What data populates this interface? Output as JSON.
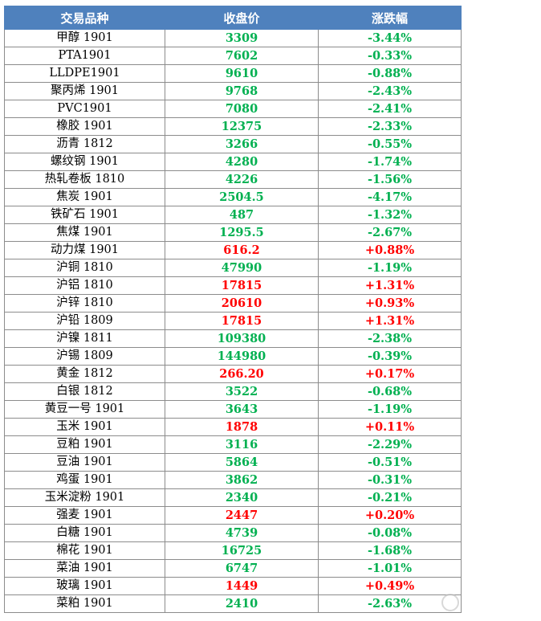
{
  "table": {
    "headers": [
      "交易品种",
      "收盘价",
      "涨跌幅"
    ],
    "colors": {
      "up": "#ff0000",
      "down": "#00b050",
      "header_bg": "#4f81bd"
    },
    "rows": [
      {
        "name": "甲醇 1901",
        "close": "3309",
        "change": "-3.44%",
        "dir": "down"
      },
      {
        "name": "PTA1901",
        "close": "7602",
        "change": "-0.33%",
        "dir": "down"
      },
      {
        "name": "LLDPE1901",
        "close": "9610",
        "change": "-0.88%",
        "dir": "down"
      },
      {
        "name": "聚丙烯 1901",
        "close": "9768",
        "change": "-2.43%",
        "dir": "down"
      },
      {
        "name": "PVC1901",
        "close": "7080",
        "change": "-2.41%",
        "dir": "down"
      },
      {
        "name": "橡胶 1901",
        "close": "12375",
        "change": "-2.33%",
        "dir": "down"
      },
      {
        "name": "沥青 1812",
        "close": "3266",
        "change": "-0.55%",
        "dir": "down"
      },
      {
        "name": "螺纹钢 1901",
        "close": "4280",
        "change": "-1.74%",
        "dir": "down"
      },
      {
        "name": "热轧卷板 1810",
        "close": "4226",
        "change": "-1.56%",
        "dir": "down"
      },
      {
        "name": "焦炭 1901",
        "close": "2504.5",
        "change": "-4.17%",
        "dir": "down"
      },
      {
        "name": "铁矿石 1901",
        "close": "487",
        "change": "-1.32%",
        "dir": "down"
      },
      {
        "name": "焦煤 1901",
        "close": "1295.5",
        "change": "-2.67%",
        "dir": "down"
      },
      {
        "name": "动力煤 1901",
        "close": "616.2",
        "change": "+0.88%",
        "dir": "up"
      },
      {
        "name": "沪铜 1810",
        "close": "47990",
        "change": "-1.19%",
        "dir": "down"
      },
      {
        "name": "沪铝 1810",
        "close": "17815",
        "change": "+1.31%",
        "dir": "up"
      },
      {
        "name": "沪锌 1810",
        "close": "20610",
        "change": "+0.93%",
        "dir": "up"
      },
      {
        "name": "沪铅 1809",
        "close": "17815",
        "change": "+1.31%",
        "dir": "up"
      },
      {
        "name": "沪镍 1811",
        "close": "109380",
        "change": "-2.38%",
        "dir": "down"
      },
      {
        "name": "沪锡 1809",
        "close": "144980",
        "change": "-0.39%",
        "dir": "down"
      },
      {
        "name": "黄金 1812",
        "close": "266.20",
        "change": "+0.17%",
        "dir": "up"
      },
      {
        "name": "白银 1812",
        "close": "3522",
        "change": "-0.68%",
        "dir": "down"
      },
      {
        "name": "黄豆一号 1901",
        "close": "3643",
        "change": "-1.19%",
        "dir": "down"
      },
      {
        "name": "玉米 1901",
        "close": "1878",
        "change": "+0.11%",
        "dir": "up"
      },
      {
        "name": "豆粕 1901",
        "close": "3116",
        "change": "-2.29%",
        "dir": "down"
      },
      {
        "name": "豆油 1901",
        "close": "5864",
        "change": "-0.51%",
        "dir": "down"
      },
      {
        "name": "鸡蛋 1901",
        "close": "3862",
        "change": "-0.31%",
        "dir": "down"
      },
      {
        "name": "玉米淀粉 1901",
        "close": "2340",
        "change": "-0.21%",
        "dir": "down"
      },
      {
        "name": "强麦 1901",
        "close": "2447",
        "change": "+0.20%",
        "dir": "up"
      },
      {
        "name": "白糖 1901",
        "close": "4739",
        "change": "-0.08%",
        "dir": "down"
      },
      {
        "name": "棉花 1901",
        "close": "16725",
        "change": "-1.68%",
        "dir": "down"
      },
      {
        "name": "菜油 1901",
        "close": "6747",
        "change": "-1.01%",
        "dir": "down"
      },
      {
        "name": "玻璃 1901",
        "close": "1449",
        "change": "+0.49%",
        "dir": "up"
      },
      {
        "name": "菜粕 1901",
        "close": "2410",
        "change": "-2.63%",
        "dir": "down"
      }
    ]
  },
  "watermark": {
    "icon": "circle-logo-icon"
  }
}
